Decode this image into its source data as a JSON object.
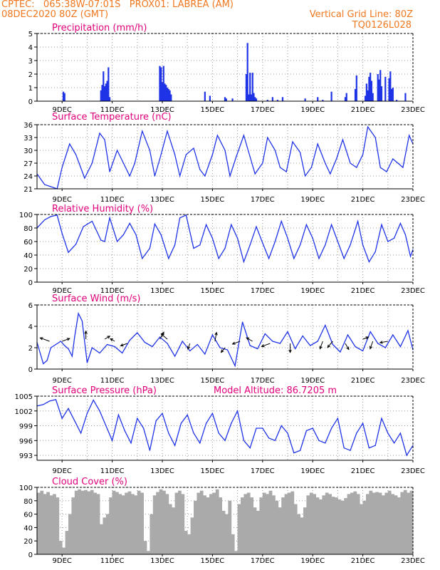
{
  "header": {
    "line1": "CPTEC:   065:38W-07:01S   PROX01: LABREA (AM)",
    "line2_left": "08DEC2020 80Z (GMT)",
    "line2_right": "Vertical Grid Line: 80Z",
    "line3_right": "TQ0126L028"
  },
  "colors": {
    "header": "#f07820",
    "title": "#e0007a",
    "line": "#1f33e6",
    "cloud": "#aaaaaa"
  },
  "x_ticks": [
    "9DEC",
    "11DEC",
    "13DEC",
    "15DEC",
    "17DEC",
    "19DEC",
    "21DEC",
    "23DEC"
  ],
  "chart_data": [
    {
      "id": "precip",
      "type": "bar",
      "title": "Precipitation (mm/h)",
      "x_ticks": [
        "9DEC",
        "11DEC",
        "13DEC",
        "15DEC",
        "17DEC",
        "19DEC",
        "21DEC",
        "23DEC"
      ],
      "ylim": [
        0,
        5
      ],
      "yticks": [
        0,
        1,
        2,
        3,
        4,
        5
      ],
      "x": [
        1.05,
        1.1,
        2.55,
        2.6,
        2.65,
        2.7,
        2.75,
        2.8,
        2.85,
        2.9,
        4.9,
        4.95,
        5.0,
        5.05,
        5.1,
        5.15,
        5.2,
        5.25,
        5.3,
        5.35,
        6.7,
        6.9,
        7.5,
        7.55,
        7.8,
        8.35,
        8.4,
        8.45,
        8.5,
        8.55,
        8.6,
        8.65,
        8.7,
        8.75,
        9.2,
        9.4,
        9.6,
        9.8,
        10.7,
        11.2,
        11.4,
        11.75,
        12.3,
        12.35,
        12.7,
        12.75,
        13.1,
        13.15,
        13.2,
        13.25,
        13.3,
        13.35,
        13.4,
        13.6,
        13.65,
        13.7,
        13.75,
        13.9,
        14.05,
        14.1,
        14.15,
        14.2,
        14.35,
        14.7
      ],
      "values": [
        0.7,
        0.6,
        0.8,
        1.2,
        2.2,
        1.1,
        1.3,
        1.5,
        2.5,
        0.3,
        2.6,
        2.5,
        1.4,
        2.6,
        1.3,
        1.2,
        1.0,
        0.9,
        0.8,
        0.5,
        0.7,
        0.4,
        0.3,
        0.2,
        0.2,
        2.0,
        4.3,
        0.5,
        2.1,
        0.5,
        2.1,
        0.6,
        0.3,
        0.2,
        0.1,
        0.3,
        0.1,
        0.3,
        0.2,
        0.3,
        0.1,
        0.7,
        0.3,
        0.6,
        0.9,
        1.9,
        0.4,
        1.3,
        0.8,
        1.8,
        2.1,
        1.5,
        0.6,
        2.0,
        1.6,
        2.3,
        1.1,
        1.8,
        1.7,
        2.2,
        0.9,
        1.0,
        0.1,
        0.6
      ]
    },
    {
      "id": "temp",
      "type": "line",
      "title": "Surface Temperature (nC)",
      "x_ticks": [
        "9DEC",
        "11DEC",
        "13DEC",
        "15DEC",
        "17DEC",
        "19DEC",
        "21DEC",
        "23DEC"
      ],
      "ylim": [
        21,
        36
      ],
      "yticks": [
        21,
        24,
        27,
        30,
        33,
        36
      ],
      "x": [
        0,
        0.3,
        0.55,
        0.8,
        1.0,
        1.3,
        1.55,
        1.9,
        2.2,
        2.5,
        2.7,
        2.9,
        3.2,
        3.45,
        3.7,
        3.9,
        4.2,
        4.5,
        4.7,
        4.9,
        5.2,
        5.5,
        5.7,
        5.95,
        6.25,
        6.5,
        6.7,
        7.0,
        7.2,
        7.5,
        7.7,
        7.95,
        8.25,
        8.5,
        8.7,
        9.0,
        9.2,
        9.5,
        9.7,
        9.95,
        10.2,
        10.5,
        10.7,
        10.95,
        11.2,
        11.5,
        11.7,
        11.95,
        12.2,
        12.5,
        12.75,
        13.0,
        13.2,
        13.5,
        13.7,
        13.95,
        14.2,
        14.4,
        14.6,
        14.85,
        15.0
      ],
      "values": [
        24.5,
        22.0,
        21.5,
        21.0,
        26.0,
        31.5,
        29.0,
        23.5,
        27.0,
        34.0,
        32.5,
        25.0,
        30.0,
        27.0,
        24.0,
        27.0,
        34.5,
        30.0,
        24.0,
        28.0,
        34.5,
        29.0,
        24.0,
        29.0,
        30.5,
        25.5,
        24.0,
        29.0,
        33.5,
        30.0,
        24.0,
        28.5,
        33.5,
        28.5,
        24.5,
        27.0,
        33.0,
        30.0,
        26.0,
        25.0,
        32.0,
        29.5,
        24.0,
        26.0,
        31.5,
        27.0,
        24.5,
        28.0,
        32.5,
        27.0,
        26.0,
        29.0,
        35.5,
        33.0,
        26.0,
        25.0,
        28.0,
        27.0,
        26.0,
        33.5,
        31.5
      ]
    },
    {
      "id": "rh",
      "type": "line",
      "title": "Relative Humidity (%)",
      "x_ticks": [
        "9DEC",
        "11DEC",
        "13DEC",
        "15DEC",
        "17DEC",
        "19DEC",
        "21DEC",
        "23DEC"
      ],
      "ylim": [
        0,
        100
      ],
      "yticks": [
        0,
        20,
        40,
        60,
        80,
        100
      ],
      "x": [
        0,
        0.3,
        0.55,
        0.8,
        1.0,
        1.25,
        1.55,
        1.85,
        2.2,
        2.55,
        2.7,
        2.9,
        3.2,
        3.45,
        3.7,
        3.95,
        4.2,
        4.5,
        4.7,
        4.95,
        5.25,
        5.5,
        5.7,
        5.95,
        6.25,
        6.5,
        6.75,
        7.0,
        7.25,
        7.5,
        7.75,
        8.0,
        8.25,
        8.5,
        8.75,
        9.0,
        9.25,
        9.5,
        9.75,
        10.0,
        10.25,
        10.5,
        10.75,
        11.0,
        11.25,
        11.5,
        11.75,
        12.0,
        12.25,
        12.5,
        12.8,
        13.0,
        13.25,
        13.5,
        13.75,
        14.0,
        14.25,
        14.5,
        14.7,
        14.9,
        15.0
      ],
      "values": [
        80,
        92,
        97,
        99,
        72,
        44,
        56,
        82,
        90,
        62,
        60,
        95,
        60,
        70,
        87,
        70,
        35,
        50,
        86,
        70,
        35,
        55,
        95,
        99,
        50,
        55,
        85,
        65,
        35,
        50,
        85,
        65,
        30,
        55,
        82,
        58,
        35,
        60,
        90,
        65,
        35,
        55,
        85,
        65,
        35,
        55,
        85,
        60,
        35,
        55,
        90,
        55,
        30,
        45,
        85,
        60,
        65,
        87,
        70,
        38,
        48
      ]
    },
    {
      "id": "wind",
      "type": "line",
      "title": "Surface Wind (m/s)",
      "x_ticks": [
        "9DEC",
        "11DEC",
        "13DEC",
        "15DEC",
        "17DEC",
        "19DEC",
        "21DEC",
        "23DEC"
      ],
      "ylim": [
        0,
        6
      ],
      "yticks": [
        0,
        2,
        4,
        6
      ],
      "x": [
        0,
        0.25,
        0.4,
        0.55,
        0.75,
        0.95,
        1.1,
        1.25,
        1.4,
        1.5,
        1.65,
        1.8,
        2.0,
        2.2,
        2.5,
        2.8,
        3.1,
        3.4,
        3.7,
        4.0,
        4.3,
        4.6,
        4.9,
        5.2,
        5.5,
        5.8,
        6.1,
        6.4,
        6.7,
        7.0,
        7.3,
        7.6,
        7.9,
        8.2,
        8.5,
        8.8,
        9.1,
        9.4,
        9.7,
        10.0,
        10.3,
        10.6,
        10.9,
        11.2,
        11.5,
        11.8,
        12.1,
        12.4,
        12.7,
        13.0,
        13.3,
        13.6,
        13.9,
        14.2,
        14.5,
        14.8,
        15.0
      ],
      "values": [
        2.5,
        0.5,
        0.8,
        2.0,
        2.3,
        2.6,
        2.2,
        1.9,
        1.2,
        3.0,
        5.2,
        4.5,
        0.6,
        2.0,
        1.5,
        2.3,
        2.1,
        1.5,
        2.7,
        3.4,
        2.5,
        2.1,
        3.0,
        2.4,
        1.2,
        2.6,
        1.7,
        2.3,
        1.4,
        3.2,
        2.0,
        1.8,
        0.3,
        4.4,
        2.2,
        1.9,
        3.3,
        2.6,
        2.4,
        3.5,
        1.9,
        3.1,
        2.2,
        2.6,
        4.1,
        2.3,
        1.6,
        3.2,
        2.1,
        1.7,
        3.5,
        2.4,
        2.0,
        3.2,
        2.1,
        3.6,
        1.8
      ],
      "arrows": [
        {
          "x": 0.5,
          "y": 2.6,
          "angle": 160,
          "len": 1.0
        },
        {
          "x": 1.0,
          "y": 2.6,
          "angle": 20,
          "len": 0.8
        },
        {
          "x": 1.95,
          "y": 2.8,
          "angle": 90,
          "len": 0.8
        },
        {
          "x": 2.7,
          "y": 2.8,
          "angle": 30,
          "len": 0.6
        },
        {
          "x": 3.1,
          "y": 2.6,
          "angle": 150,
          "len": 0.5
        },
        {
          "x": 3.6,
          "y": 2.4,
          "angle": 200,
          "len": 0.7
        },
        {
          "x": 4.9,
          "y": 2.8,
          "angle": 60,
          "len": 0.8
        },
        {
          "x": 5.2,
          "y": 2.8,
          "angle": 140,
          "len": 0.8
        },
        {
          "x": 6.1,
          "y": 2.4,
          "angle": 250,
          "len": 0.6
        },
        {
          "x": 7.1,
          "y": 2.6,
          "angle": 80,
          "len": 0.9
        },
        {
          "x": 7.5,
          "y": 2.0,
          "angle": 230,
          "len": 0.6
        },
        {
          "x": 8.1,
          "y": 2.6,
          "angle": 200,
          "len": 0.8
        },
        {
          "x": 8.6,
          "y": 2.6,
          "angle": 150,
          "len": 0.7
        },
        {
          "x": 9.3,
          "y": 2.4,
          "angle": 200,
          "len": 0.9
        },
        {
          "x": 10.1,
          "y": 2.4,
          "angle": 270,
          "len": 0.9
        },
        {
          "x": 11.4,
          "y": 2.6,
          "angle": 250,
          "len": 0.8
        },
        {
          "x": 11.8,
          "y": 2.6,
          "angle": 230,
          "len": 0.8
        },
        {
          "x": 12.3,
          "y": 2.4,
          "angle": 300,
          "len": 0.7
        },
        {
          "x": 13.0,
          "y": 2.8,
          "angle": 20,
          "len": 0.6
        },
        {
          "x": 13.4,
          "y": 2.6,
          "angle": 250,
          "len": 0.8
        },
        {
          "x": 14.0,
          "y": 2.6,
          "angle": 190,
          "len": 0.8
        }
      ]
    },
    {
      "id": "pres",
      "type": "line",
      "title": "Surface Pressure (hPa)",
      "annotation": "Model Altitude: 86.7205 m",
      "x_ticks": [
        "9DEC",
        "11DEC",
        "13DEC",
        "15DEC",
        "17DEC",
        "19DEC",
        "21DEC",
        "23DEC"
      ],
      "ylim": [
        992,
        1005
      ],
      "yticks": [
        993,
        996,
        999,
        1002,
        1005
      ],
      "x": [
        0,
        0.25,
        0.5,
        0.75,
        1.0,
        1.25,
        1.5,
        1.75,
        2.0,
        2.25,
        2.5,
        2.75,
        3.0,
        3.25,
        3.5,
        3.75,
        4.0,
        4.25,
        4.5,
        4.75,
        5.0,
        5.25,
        5.5,
        5.75,
        6.0,
        6.25,
        6.5,
        6.75,
        7.0,
        7.25,
        7.5,
        7.75,
        8.0,
        8.25,
        8.5,
        8.75,
        9.0,
        9.25,
        9.5,
        9.75,
        10.0,
        10.25,
        10.5,
        10.75,
        11.0,
        11.25,
        11.5,
        11.75,
        12.0,
        12.25,
        12.5,
        12.75,
        13.0,
        13.25,
        13.5,
        13.75,
        14.0,
        14.25,
        14.5,
        14.75,
        15.0
      ],
      "values": [
        1003,
        1003.3,
        1004,
        1004.3,
        1000.5,
        1002.5,
        1000,
        997.5,
        1001.5,
        1004.2,
        1002,
        999,
        996,
        1001.2,
        998,
        995.5,
        1000.5,
        998.5,
        994,
        1000,
        1001.5,
        997.5,
        995,
        999.5,
        1001.2,
        997.5,
        995.5,
        999.5,
        1001.5,
        997.5,
        996,
        999.5,
        1002,
        996,
        994.5,
        998.5,
        998.5,
        996.5,
        996,
        999,
        997.5,
        993.5,
        994,
        998,
        998.5,
        996,
        995.5,
        998.5,
        1000.5,
        994.5,
        994,
        997.5,
        999.5,
        994.5,
        995,
        1000.5,
        997.5,
        995.5,
        997.5,
        993,
        995
      ]
    },
    {
      "id": "cloud",
      "type": "bar",
      "title": "Cloud Cover (%)",
      "x_ticks": [
        "9DEC",
        "11DEC",
        "13DEC",
        "15DEC",
        "17DEC",
        "19DEC",
        "21DEC",
        "23DEC"
      ],
      "ylim": [
        0,
        100
      ],
      "yticks": [
        0,
        20,
        40,
        60,
        80,
        100
      ],
      "x": [
        0,
        0.125,
        0.25,
        0.375,
        0.5,
        0.625,
        0.75,
        0.875,
        1.0,
        1.125,
        1.25,
        1.375,
        1.5,
        1.625,
        1.75,
        1.875,
        2.0,
        2.125,
        2.25,
        2.375,
        2.5,
        2.625,
        2.75,
        2.875,
        3.0,
        3.125,
        3.25,
        3.375,
        3.5,
        3.625,
        3.75,
        3.875,
        4.0,
        4.125,
        4.25,
        4.375,
        4.5,
        4.625,
        4.75,
        4.875,
        5.0,
        5.125,
        5.25,
        5.375,
        5.5,
        5.625,
        5.75,
        5.875,
        6.0,
        6.125,
        6.25,
        6.375,
        6.5,
        6.625,
        6.75,
        6.875,
        7.0,
        7.125,
        7.25,
        7.375,
        7.5,
        7.625,
        7.75,
        7.875,
        8.0,
        8.125,
        8.25,
        8.375,
        8.5,
        8.625,
        8.75,
        8.875,
        9.0,
        9.125,
        9.25,
        9.375,
        9.5,
        9.625,
        9.75,
        9.875,
        10.0,
        10.125,
        10.25,
        10.375,
        10.5,
        10.625,
        10.75,
        10.875,
        11.0,
        11.125,
        11.25,
        11.375,
        11.5,
        11.625,
        11.75,
        11.875,
        12.0,
        12.125,
        12.25,
        12.375,
        12.5,
        12.625,
        12.75,
        12.875,
        13.0,
        13.125,
        13.25,
        13.375,
        13.5,
        13.625,
        13.75,
        13.875,
        14.0,
        14.125,
        14.25,
        14.375,
        14.5,
        14.625,
        14.75,
        14.875
      ],
      "values": [
        92,
        95,
        90,
        93,
        88,
        90,
        85,
        20,
        10,
        35,
        60,
        85,
        95,
        97,
        95,
        96,
        94,
        96,
        92,
        90,
        45,
        55,
        60,
        85,
        95,
        93,
        90,
        88,
        92,
        94,
        90,
        88,
        95,
        92,
        20,
        5,
        60,
        88,
        93,
        97,
        95,
        90,
        75,
        70,
        92,
        95,
        90,
        35,
        30,
        55,
        80,
        92,
        95,
        88,
        85,
        90,
        92,
        97,
        85,
        65,
        60,
        80,
        30,
        5,
        75,
        85,
        90,
        92,
        85,
        70,
        65,
        85,
        92,
        90,
        95,
        88,
        80,
        70,
        85,
        90,
        92,
        94,
        75,
        60,
        55,
        70,
        88,
        92,
        90,
        85,
        82,
        88,
        92,
        90,
        86,
        85,
        82,
        80,
        84,
        90,
        92,
        94,
        90,
        75,
        80,
        90,
        95,
        92,
        93,
        92,
        88,
        92,
        95,
        90,
        88,
        85,
        93,
        96,
        92,
        95
      ]
    }
  ]
}
